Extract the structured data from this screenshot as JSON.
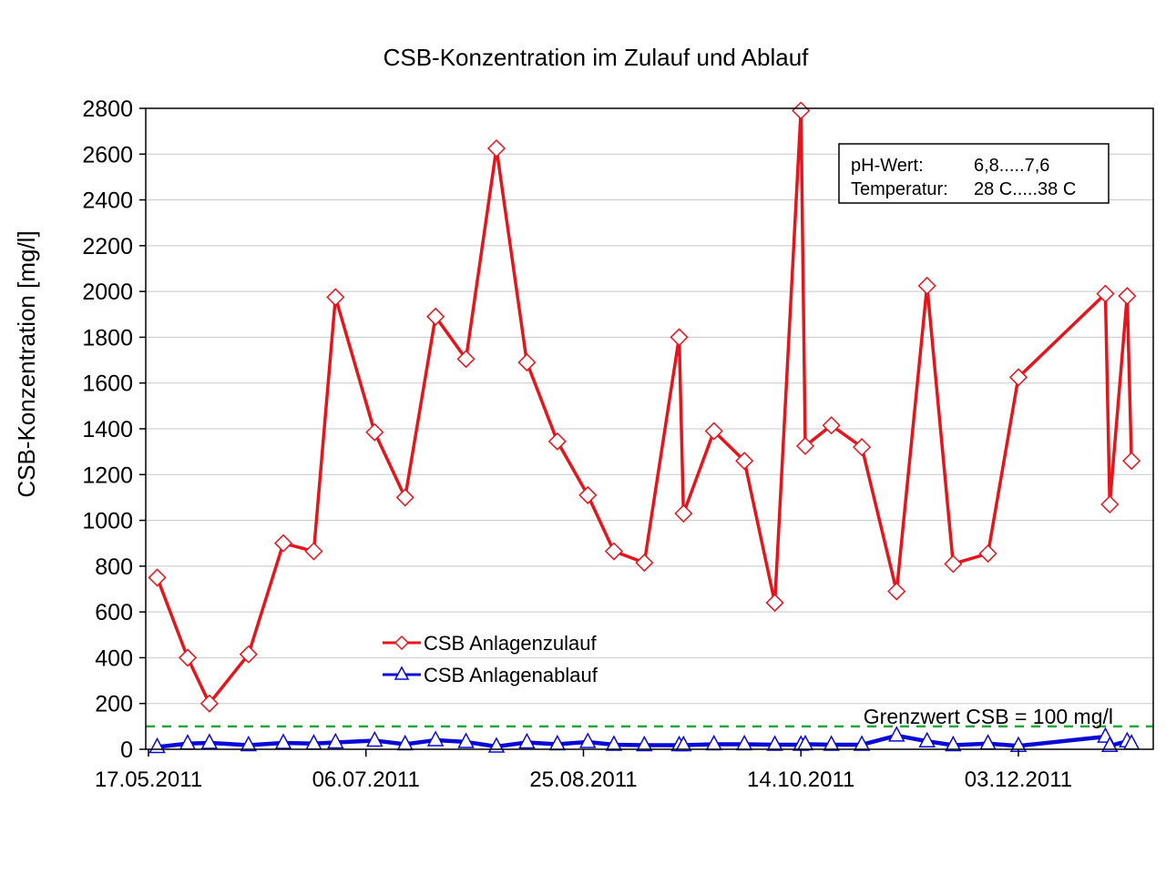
{
  "chart_data": {
    "type": "line",
    "title": "CSB-Konzentration im Zulauf und Ablauf",
    "xlabel": "",
    "ylabel": "CSB-Konzentration [mg/l]",
    "xlim": [
      "17.05.2011",
      "03.01.2012"
    ],
    "ylim": [
      0,
      2800
    ],
    "x_ticks": [
      "17.05.2011",
      "06.07.2011",
      "25.08.2011",
      "14.10.2011",
      "03.12.2011"
    ],
    "y_ticks": [
      0,
      200,
      400,
      600,
      800,
      1000,
      1200,
      1400,
      1600,
      1800,
      2000,
      2200,
      2400,
      2600,
      2800
    ],
    "grid": "horizontal",
    "legend_placement": "lower-center",
    "x": [
      "19.05.2011",
      "26.05.2011",
      "31.05.2011",
      "09.06.2011",
      "17.06.2011",
      "24.06.2011",
      "29.06.2011",
      "08.07.2011",
      "15.07.2011",
      "22.07.2011",
      "29.07.2011",
      "05.08.2011",
      "12.08.2011",
      "19.08.2011",
      "26.08.2011",
      "01.09.2011",
      "08.09.2011",
      "16.09.2011",
      "17.09.2011",
      "24.09.2011",
      "01.10.2011",
      "08.10.2011",
      "14.10.2011",
      "15.10.2011",
      "21.10.2011",
      "28.10.2011",
      "05.11.2011",
      "12.11.2011",
      "18.11.2011",
      "26.11.2011",
      "03.12.2011",
      "23.12.2011",
      "24.12.2011",
      "28.12.2011",
      "29.12.2011"
    ],
    "series": [
      {
        "name": "CSB Anlagenzulauf",
        "color": "#e8141b",
        "marker": "diamond",
        "values": [
          750,
          400,
          200,
          415,
          900,
          865,
          1975,
          1385,
          1100,
          1890,
          1705,
          2625,
          1690,
          1345,
          1110,
          865,
          815,
          1800,
          1030,
          1390,
          1260,
          640,
          2790,
          1325,
          1415,
          1320,
          690,
          2025,
          810,
          855,
          1625,
          1990,
          1070,
          1980,
          1260
        ]
      },
      {
        "name": "CSB Anlagenablauf",
        "color": "#0a0ad8",
        "marker": "triangle",
        "values": [
          10,
          25,
          28,
          18,
          28,
          25,
          30,
          38,
          22,
          40,
          32,
          12,
          30,
          22,
          32,
          20,
          18,
          18,
          18,
          22,
          22,
          20,
          20,
          22,
          20,
          20,
          60,
          35,
          18,
          25,
          15,
          55,
          15,
          35,
          25
        ]
      }
    ],
    "threshold": {
      "value": 100,
      "label": "Grenzwert CSB = 100 mg/l",
      "color": "#22a63a",
      "style": "dashed"
    },
    "annotation": {
      "rows": [
        {
          "label": "pH-Wert:",
          "value": "6,8.....7,6"
        },
        {
          "label": "Temperatur:",
          "value": "28 C.....38 C"
        }
      ]
    }
  }
}
